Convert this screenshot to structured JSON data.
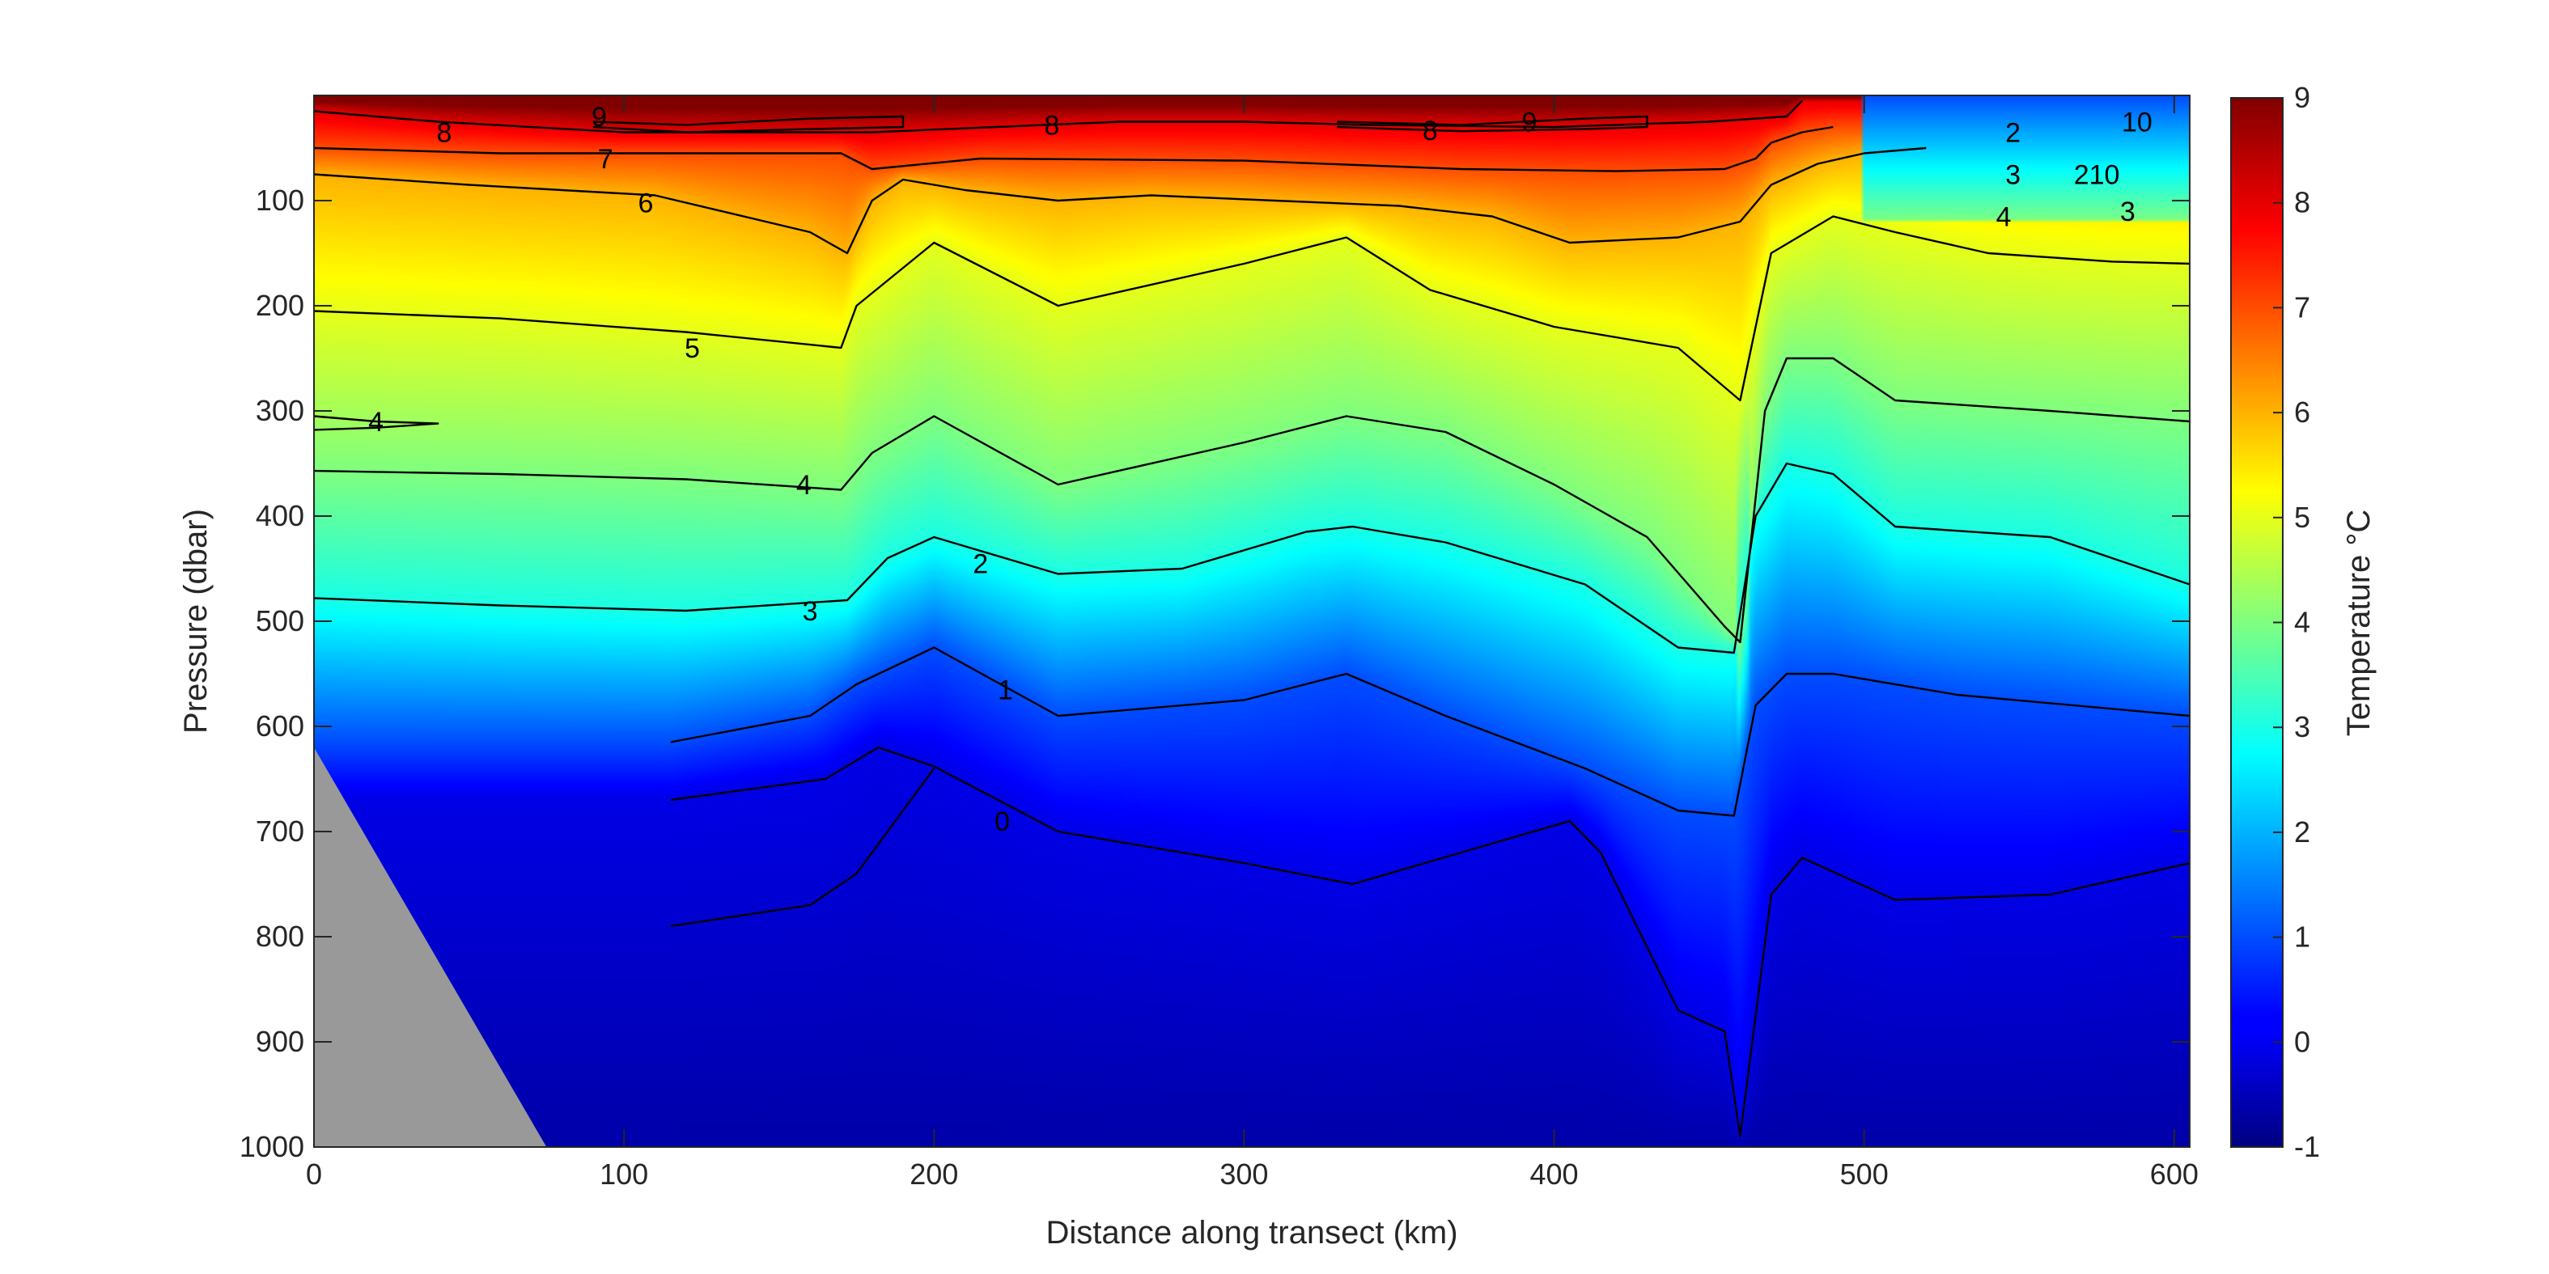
{
  "chart_data": {
    "type": "heatmap",
    "title": "",
    "xlabel": "Distance along transect (km)",
    "ylabel": "Pressure (dbar)",
    "colorbar_label": "Temperature °C",
    "colormap": "jet",
    "xlim": [
      0,
      605
    ],
    "ylim": [
      1000,
      0
    ],
    "y_reversed": true,
    "xticks": [
      0,
      100,
      200,
      300,
      400,
      500,
      600
    ],
    "yticks": [
      100,
      200,
      300,
      400,
      500,
      600,
      700,
      800,
      900,
      1000
    ],
    "clim": [
      -1,
      9
    ],
    "cticks": [
      -1,
      0,
      1,
      2,
      3,
      4,
      5,
      6,
      7,
      8,
      9
    ],
    "bathymetry_color": "#999999",
    "bathymetry": [
      [
        0,
        620
      ],
      [
        75,
        1000
      ],
      [
        0,
        1000
      ]
    ],
    "contours": [
      {
        "level": 9,
        "points": [
          [
            90,
            25
          ],
          [
            120,
            28
          ],
          [
            160,
            22
          ],
          [
            190,
            20
          ],
          [
            190,
            30
          ],
          [
            160,
            32
          ],
          [
            120,
            35
          ],
          [
            90,
            30
          ]
        ]
      },
      {
        "level": 9,
        "points": [
          [
            330,
            25
          ],
          [
            370,
            28
          ],
          [
            410,
            22
          ],
          [
            430,
            20
          ],
          [
            430,
            30
          ],
          [
            410,
            32
          ],
          [
            370,
            34
          ],
          [
            330,
            30
          ]
        ]
      },
      {
        "level": 8,
        "points": [
          [
            0,
            15
          ],
          [
            40,
            25
          ],
          [
            100,
            35
          ],
          [
            180,
            35
          ],
          [
            220,
            30
          ],
          [
            260,
            25
          ],
          [
            300,
            25
          ],
          [
            340,
            28
          ],
          [
            400,
            30
          ],
          [
            450,
            25
          ],
          [
            475,
            20
          ],
          [
            480,
            5
          ]
        ]
      },
      {
        "level": 7,
        "points": [
          [
            0,
            50
          ],
          [
            60,
            55
          ],
          [
            120,
            55
          ],
          [
            170,
            55
          ],
          [
            180,
            70
          ],
          [
            215,
            60
          ],
          [
            300,
            62
          ],
          [
            370,
            70
          ],
          [
            420,
            72
          ],
          [
            455,
            70
          ],
          [
            465,
            60
          ],
          [
            470,
            45
          ],
          [
            480,
            35
          ],
          [
            490,
            30
          ]
        ]
      },
      {
        "level": 6,
        "points": [
          [
            0,
            75
          ],
          [
            50,
            85
          ],
          [
            110,
            95
          ],
          [
            160,
            130
          ],
          [
            172,
            150
          ],
          [
            180,
            100
          ],
          [
            190,
            80
          ],
          [
            210,
            90
          ],
          [
            240,
            100
          ],
          [
            270,
            95
          ],
          [
            310,
            100
          ],
          [
            350,
            105
          ],
          [
            380,
            115
          ],
          [
            405,
            140
          ],
          [
            440,
            135
          ],
          [
            460,
            120
          ],
          [
            470,
            85
          ],
          [
            485,
            65
          ],
          [
            500,
            55
          ],
          [
            520,
            50
          ]
        ]
      },
      {
        "level": 5,
        "points": [
          [
            0,
            205
          ],
          [
            60,
            212
          ],
          [
            120,
            225
          ],
          [
            170,
            240
          ],
          [
            175,
            200
          ],
          [
            200,
            140
          ],
          [
            240,
            200
          ],
          [
            300,
            160
          ],
          [
            333,
            135
          ],
          [
            360,
            185
          ],
          [
            400,
            220
          ],
          [
            440,
            240
          ],
          [
            460,
            290
          ],
          [
            470,
            150
          ],
          [
            490,
            115
          ],
          [
            510,
            130
          ],
          [
            540,
            150
          ],
          [
            580,
            158
          ],
          [
            605,
            160
          ]
        ]
      },
      {
        "level": 4,
        "points": [
          [
            0,
            357
          ],
          [
            60,
            360
          ],
          [
            120,
            365
          ],
          [
            170,
            375
          ],
          [
            180,
            340
          ],
          [
            200,
            305
          ],
          [
            240,
            370
          ],
          [
            300,
            330
          ],
          [
            333,
            305
          ],
          [
            365,
            320
          ],
          [
            400,
            370
          ],
          [
            430,
            420
          ],
          [
            455,
            505
          ],
          [
            460,
            520
          ],
          [
            468,
            300
          ],
          [
            475,
            250
          ],
          [
            490,
            250
          ],
          [
            510,
            290
          ],
          [
            560,
            300
          ],
          [
            605,
            310
          ]
        ]
      },
      {
        "level": 3,
        "points": [
          [
            0,
            478
          ],
          [
            60,
            485
          ],
          [
            120,
            490
          ],
          [
            172,
            480
          ],
          [
            185,
            440
          ],
          [
            200,
            420
          ],
          [
            240,
            455
          ],
          [
            280,
            450
          ],
          [
            320,
            415
          ],
          [
            335,
            410
          ],
          [
            365,
            425
          ],
          [
            410,
            465
          ],
          [
            440,
            525
          ],
          [
            458,
            530
          ],
          [
            465,
            400
          ],
          [
            475,
            350
          ],
          [
            490,
            360
          ],
          [
            510,
            410
          ],
          [
            560,
            420
          ],
          [
            605,
            465
          ]
        ]
      },
      {
        "level": 1,
        "points": [
          [
            115,
            615
          ],
          [
            160,
            590
          ],
          [
            175,
            560
          ],
          [
            200,
            525
          ],
          [
            240,
            590
          ],
          [
            300,
            575
          ],
          [
            333,
            550
          ],
          [
            365,
            590
          ],
          [
            410,
            640
          ],
          [
            440,
            680
          ],
          [
            458,
            685
          ],
          [
            465,
            580
          ],
          [
            475,
            550
          ],
          [
            490,
            550
          ],
          [
            530,
            570
          ],
          [
            605,
            590
          ]
        ]
      },
      {
        "level": 0,
        "points": [
          [
            115,
            670
          ],
          [
            165,
            650
          ],
          [
            182,
            620
          ],
          [
            200,
            638
          ],
          [
            240,
            700
          ],
          [
            300,
            730
          ],
          [
            335,
            750
          ],
          [
            370,
            720
          ],
          [
            405,
            690
          ],
          [
            415,
            720
          ],
          [
            440,
            870
          ],
          [
            455,
            890
          ],
          [
            460,
            990
          ],
          [
            470,
            760
          ],
          [
            480,
            725
          ],
          [
            510,
            765
          ],
          [
            560,
            760
          ],
          [
            605,
            730
          ]
        ]
      },
      {
        "level": 0,
        "points": [
          [
            115,
            790
          ],
          [
            160,
            770
          ],
          [
            175,
            740
          ],
          [
            195,
            660
          ],
          [
            200,
            640
          ]
        ]
      },
      {
        "level": 4,
        "points": [
          [
            0,
            305
          ],
          [
            20,
            310
          ],
          [
            40,
            312
          ],
          [
            20,
            316
          ],
          [
            0,
            318
          ]
        ]
      }
    ],
    "contour_labels": [
      {
        "x": 92,
        "y": 20,
        "text": "9"
      },
      {
        "x": 42,
        "y": 35,
        "text": "8"
      },
      {
        "x": 238,
        "y": 28,
        "text": "8"
      },
      {
        "x": 360,
        "y": 33,
        "text": "8"
      },
      {
        "x": 392,
        "y": 25,
        "text": "9"
      },
      {
        "x": 94,
        "y": 60,
        "text": "7"
      },
      {
        "x": 107,
        "y": 102,
        "text": "6"
      },
      {
        "x": 122,
        "y": 240,
        "text": "5"
      },
      {
        "x": 20,
        "y": 310,
        "text": "4"
      },
      {
        "x": 158,
        "y": 370,
        "text": "4"
      },
      {
        "x": 160,
        "y": 490,
        "text": "3"
      },
      {
        "x": 215,
        "y": 445,
        "text": "2"
      },
      {
        "x": 223,
        "y": 565,
        "text": "1"
      },
      {
        "x": 222,
        "y": 690,
        "text": "0"
      },
      {
        "x": 548,
        "y": 35,
        "text": "2"
      },
      {
        "x": 588,
        "y": 25,
        "text": "10"
      },
      {
        "x": 548,
        "y": 75,
        "text": "3"
      },
      {
        "x": 575,
        "y": 75,
        "text": "210"
      },
      {
        "x": 545,
        "y": 115,
        "text": "4"
      },
      {
        "x": 585,
        "y": 110,
        "text": "3"
      }
    ]
  }
}
